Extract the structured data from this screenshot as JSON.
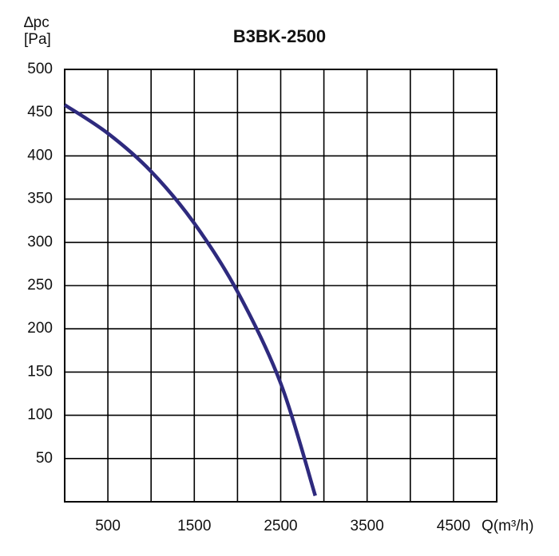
{
  "chart_data": {
    "type": "line",
    "title": "B3BK-2500",
    "y_label_lines": [
      "∆pc",
      "[Pa]"
    ],
    "x_label": "Q(m³/h)",
    "x": [
      0,
      500,
      1000,
      1500,
      2000,
      2500,
      2900
    ],
    "series": [
      {
        "color": "#2e2a7e",
        "values": [
          459,
          426,
          382,
          322,
          243,
          137,
          7
        ]
      }
    ],
    "xlim": [
      0,
      5000
    ],
    "xticks": [
      500,
      1500,
      2500,
      3500,
      4500
    ],
    "xgrid": [
      500,
      1000,
      1500,
      2000,
      2500,
      3000,
      3500,
      4000,
      4500
    ],
    "ylim": [
      0,
      500
    ],
    "yticks": [
      50,
      100,
      150,
      200,
      250,
      300,
      350,
      400,
      450,
      500
    ],
    "grid": true
  }
}
